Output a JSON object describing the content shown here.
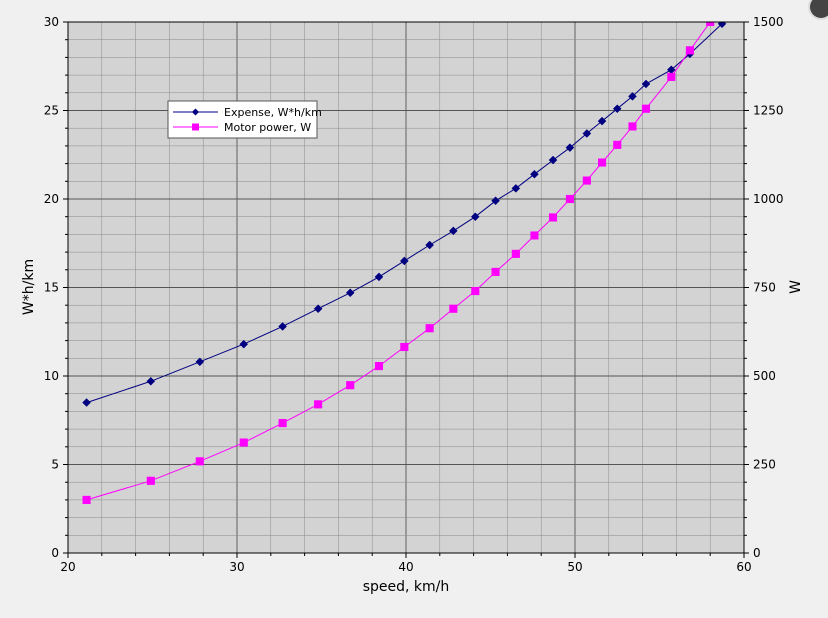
{
  "chart_data": {
    "type": "line",
    "xlabel": "speed, km/h",
    "ylabel_left": "W*h/km",
    "ylabel_right": "W",
    "xlim": [
      20,
      60
    ],
    "ylim_left": [
      0,
      30
    ],
    "ylim_right": [
      0,
      1500
    ],
    "x_ticks": [
      "20",
      "30",
      "40",
      "50",
      "60"
    ],
    "y_left_ticks": [
      "0",
      "5",
      "10",
      "15",
      "20",
      "25",
      "30"
    ],
    "y_right_ticks": [
      "0",
      "250",
      "500",
      "750",
      "1000",
      "1250",
      "1500"
    ],
    "grid": true,
    "legend_position": "top-left",
    "background_color": "#d3d3d3",
    "series": [
      {
        "name": "Expense, W*h/km",
        "axis": "left",
        "color": "#000080",
        "marker": "diamond",
        "x": [
          21.1,
          24.9,
          27.8,
          30.4,
          32.7,
          34.8,
          36.7,
          38.4,
          39.9,
          41.4,
          42.8,
          44.1,
          45.3,
          46.5,
          47.6,
          48.7,
          49.7,
          50.7,
          51.6,
          52.5,
          53.4,
          54.2,
          55.7,
          56.8,
          58.7,
          59.5
        ],
        "y": [
          8.5,
          9.7,
          10.8,
          11.8,
          12.8,
          13.8,
          14.7,
          15.6,
          16.5,
          17.4,
          18.2,
          19.0,
          19.9,
          20.6,
          21.4,
          22.2,
          22.9,
          23.7,
          24.4,
          25.1,
          25.8,
          26.5,
          27.3,
          28.2,
          29.9,
          30.6
        ]
      },
      {
        "name": "Motor power, W",
        "axis": "right",
        "color": "#ff00ff",
        "marker": "square",
        "x": [
          21.1,
          24.9,
          27.8,
          30.4,
          32.7,
          34.8,
          36.7,
          38.4,
          39.9,
          41.4,
          42.8,
          44.1,
          45.3,
          46.5,
          47.6,
          48.7,
          49.7,
          50.7,
          51.6,
          52.5,
          53.4,
          54.2,
          55.7,
          56.8,
          58.0,
          58.5
        ],
        "y": [
          150,
          204,
          259,
          312,
          367,
          420,
          474,
          528,
          582,
          635,
          690,
          740,
          794,
          845,
          897,
          948,
          1000,
          1052,
          1103,
          1153,
          1205,
          1255,
          1345,
          1420,
          1500,
          1550
        ]
      }
    ]
  }
}
